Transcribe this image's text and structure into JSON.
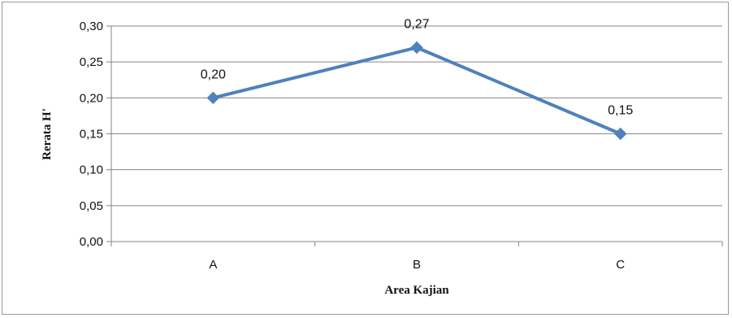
{
  "chart_data": {
    "type": "line",
    "categories": [
      "A",
      "B",
      "C"
    ],
    "series": [
      {
        "values": [
          0.2,
          0.27,
          0.15
        ],
        "labels": [
          "0,20",
          "0,27",
          "0,15"
        ],
        "color": "#4f81bd"
      }
    ],
    "xlabel": "Area Kajian",
    "ylabel": "Rerata H'",
    "ylim": [
      0,
      0.3
    ],
    "yticks": [
      0.0,
      0.05,
      0.1,
      0.15,
      0.2,
      0.25,
      0.3
    ],
    "ytick_labels": [
      "0,00",
      "0,05",
      "0,10",
      "0,15",
      "0,20",
      "0,25",
      "0,30"
    ],
    "grid": true,
    "gridline_color": "#868686"
  }
}
